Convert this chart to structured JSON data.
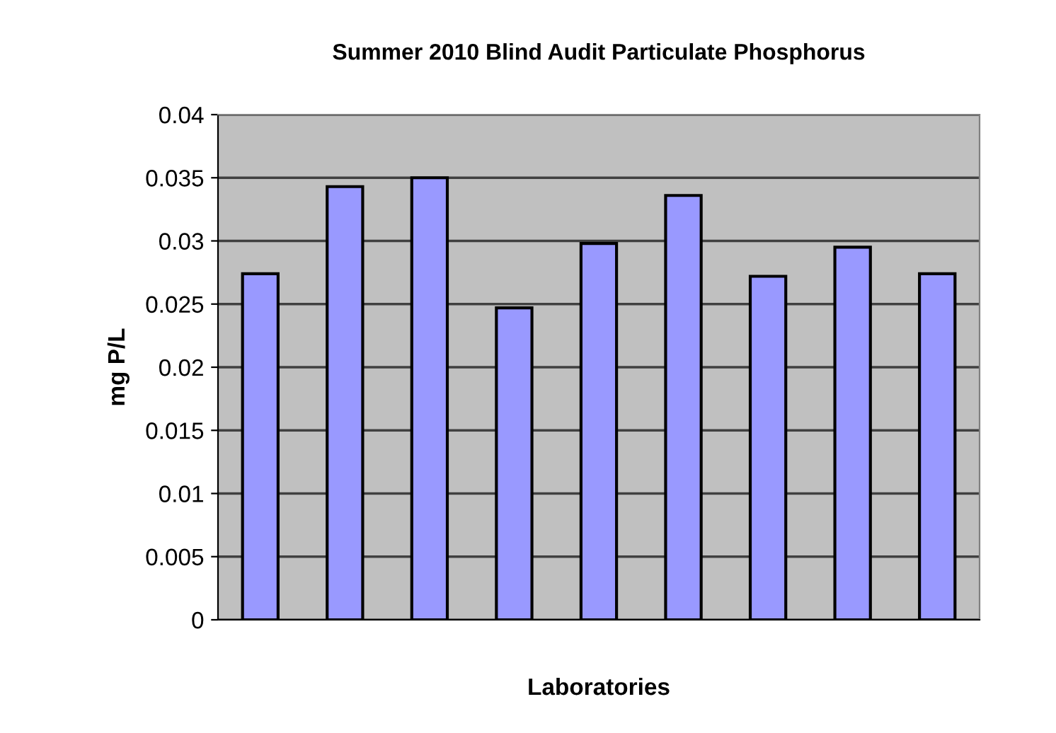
{
  "chart_data": {
    "type": "bar",
    "title": "Summer 2010 Blind Audit Particulate Phosphorus",
    "xlabel": "Laboratories",
    "ylabel": "mg P/L",
    "categories": [
      null,
      null,
      null,
      null,
      null,
      null,
      null,
      null,
      null
    ],
    "values": [
      0.0274,
      0.0343,
      0.035,
      0.0247,
      0.0298,
      0.0336,
      0.0272,
      0.0295,
      0.0274
    ],
    "color": "#9999ff",
    "ylim": [
      0,
      0.04
    ],
    "yticks": [
      0,
      0.005,
      0.01,
      0.015,
      0.02,
      0.025,
      0.03,
      0.035,
      0.04
    ],
    "grid": "y"
  }
}
